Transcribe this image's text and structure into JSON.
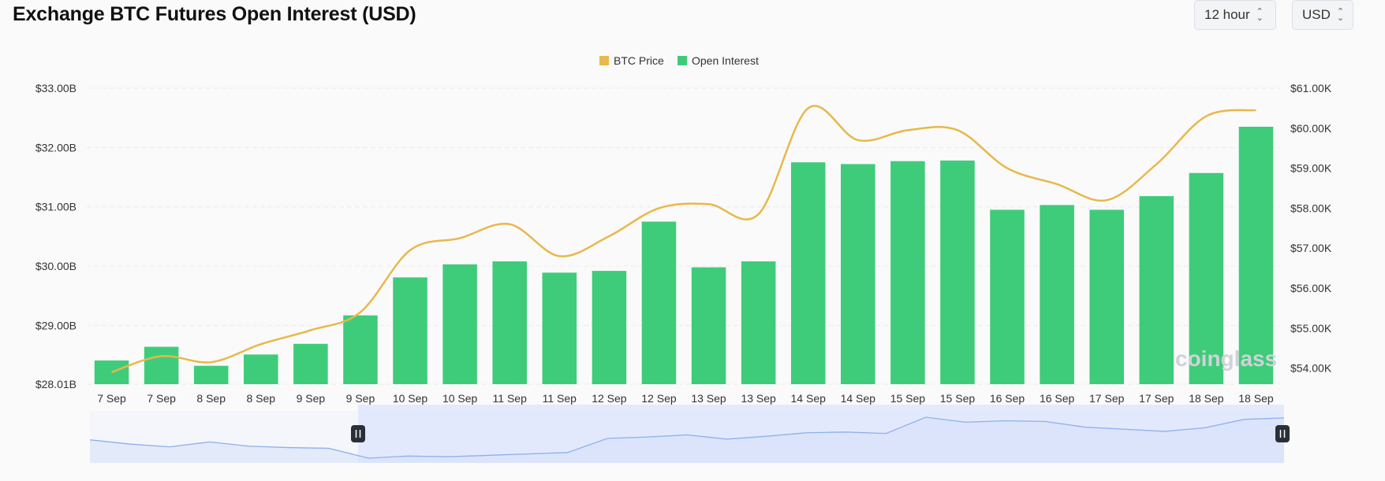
{
  "header": {
    "title": "Exchange BTC Futures Open Interest (USD)",
    "interval": "12 hour",
    "currency": "USD"
  },
  "watermark": "coinglass",
  "colors": {
    "price": "#e8b84a",
    "oi": "#3ecc7a",
    "navigator": "#8fb0ec",
    "navigator_fill": "#dfe6fb"
  },
  "chart_data": {
    "type": "bar",
    "title": "Exchange BTC Futures Open Interest (USD)",
    "categories": [
      "7 Sep",
      "7 Sep",
      "8 Sep",
      "8 Sep",
      "9 Sep",
      "9 Sep",
      "10 Sep",
      "10 Sep",
      "11 Sep",
      "11 Sep",
      "12 Sep",
      "12 Sep",
      "13 Sep",
      "13 Sep",
      "14 Sep",
      "14 Sep",
      "15 Sep",
      "15 Sep",
      "16 Sep",
      "16 Sep",
      "17 Sep",
      "17 Sep",
      "18 Sep",
      "18 Sep"
    ],
    "legend": {
      "placement": "top-center"
    },
    "grid": true,
    "y_left": {
      "ticks": [
        "$28.01B",
        "$29.00B",
        "$30.00B",
        "$31.00B",
        "$32.00B",
        "$33.00B"
      ],
      "range": [
        28.01,
        33.0
      ]
    },
    "y_right": {
      "ticks": [
        "$54.00K",
        "$55.00K",
        "$56.00K",
        "$57.00K",
        "$58.00K",
        "$59.00K",
        "$60.00K",
        "$61.00K"
      ],
      "range": [
        53.6,
        61.0
      ]
    },
    "series": [
      {
        "name": "Open Interest",
        "type": "bar",
        "axis": "left",
        "values": [
          28.41,
          28.64,
          28.32,
          28.51,
          28.69,
          29.17,
          29.81,
          30.03,
          30.08,
          29.89,
          29.92,
          30.75,
          29.98,
          30.08,
          31.75,
          31.72,
          31.77,
          31.78,
          30.95,
          31.03,
          30.95,
          31.18,
          31.57,
          32.35
        ]
      },
      {
        "name": "BTC Price",
        "type": "line",
        "axis": "right",
        "values": [
          53.9,
          54.3,
          54.15,
          54.6,
          54.95,
          55.4,
          56.95,
          57.25,
          57.6,
          56.8,
          57.3,
          58.0,
          58.1,
          57.85,
          60.5,
          59.7,
          59.95,
          59.95,
          59.0,
          58.6,
          58.2,
          59.1,
          60.3,
          60.45
        ]
      }
    ]
  }
}
